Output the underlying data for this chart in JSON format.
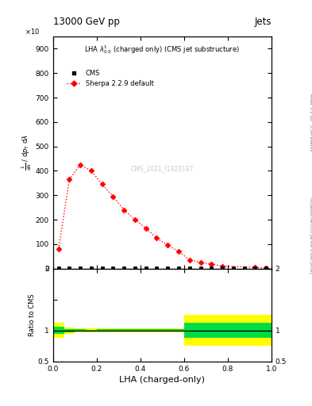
{
  "title_top": "13000 GeV pp",
  "title_right": "Jets",
  "plot_title": "LHA $\\lambda^{1}_{0.5}$ (charged only) (CMS jet substructure)",
  "right_label_top": "Rivet 3.1.10,  3.3M events",
  "right_label_bot": "mcplots.cern.ch [arXiv:1306.3436]",
  "cms_watermark": "CMS_2021_I1920187",
  "xlabel": "LHA (charged-only)",
  "ylabel_ratio": "Ratio to CMS",
  "ylim_main": [
    0,
    950
  ],
  "ylim_ratio": [
    0.5,
    2.0
  ],
  "xlim": [
    0.0,
    1.0
  ],
  "sherpa_x": [
    0.025,
    0.075,
    0.125,
    0.175,
    0.225,
    0.275,
    0.325,
    0.375,
    0.425,
    0.475,
    0.525,
    0.575,
    0.625,
    0.675,
    0.725,
    0.775,
    0.925,
    0.975
  ],
  "sherpa_y": [
    80,
    365,
    425,
    400,
    345,
    295,
    240,
    200,
    165,
    125,
    95,
    70,
    35,
    25,
    18,
    10,
    5,
    2
  ],
  "cms_x_centers": [
    0.025,
    0.075,
    0.125,
    0.175,
    0.225,
    0.275,
    0.325,
    0.375,
    0.425,
    0.475,
    0.525,
    0.575,
    0.625,
    0.675,
    0.725,
    0.775,
    0.825,
    0.875,
    0.925,
    0.975
  ],
  "cms_y": [
    2,
    2,
    2,
    2,
    2,
    2,
    2,
    2,
    2,
    2,
    2,
    2,
    2,
    2,
    2,
    2,
    2,
    2,
    2,
    2
  ],
  "ratio_x_edges": [
    0.0,
    0.05,
    0.1,
    0.15,
    0.2,
    0.25,
    0.3,
    0.35,
    0.4,
    0.45,
    0.5,
    0.55,
    0.6,
    0.65,
    0.7,
    0.75,
    0.8,
    0.85,
    0.9,
    0.95,
    1.0
  ],
  "ratio_green_lo": [
    0.94,
    0.975,
    0.983,
    0.985,
    0.984,
    0.983,
    0.983,
    0.983,
    0.982,
    0.982,
    0.982,
    0.982,
    0.875,
    0.875,
    0.875,
    0.875,
    0.875,
    0.875,
    0.875,
    0.875
  ],
  "ratio_green_hi": [
    1.06,
    1.025,
    1.017,
    1.015,
    1.016,
    1.017,
    1.017,
    1.017,
    1.018,
    1.018,
    1.018,
    1.018,
    1.125,
    1.125,
    1.125,
    1.125,
    1.125,
    1.125,
    1.125,
    1.125
  ],
  "ratio_yellow_lo": [
    0.88,
    0.95,
    0.966,
    0.97,
    0.968,
    0.966,
    0.966,
    0.966,
    0.964,
    0.964,
    0.964,
    0.964,
    0.75,
    0.75,
    0.75,
    0.75,
    0.75,
    0.75,
    0.75,
    0.75
  ],
  "ratio_yellow_hi": [
    1.12,
    1.05,
    1.034,
    1.03,
    1.032,
    1.034,
    1.034,
    1.034,
    1.036,
    1.036,
    1.036,
    1.036,
    1.25,
    1.25,
    1.25,
    1.25,
    1.25,
    1.25,
    1.25,
    1.25
  ],
  "color_sherpa": "#ff0000",
  "color_cms": "#000000",
  "color_green": "#00dd44",
  "color_yellow": "#ffff00"
}
